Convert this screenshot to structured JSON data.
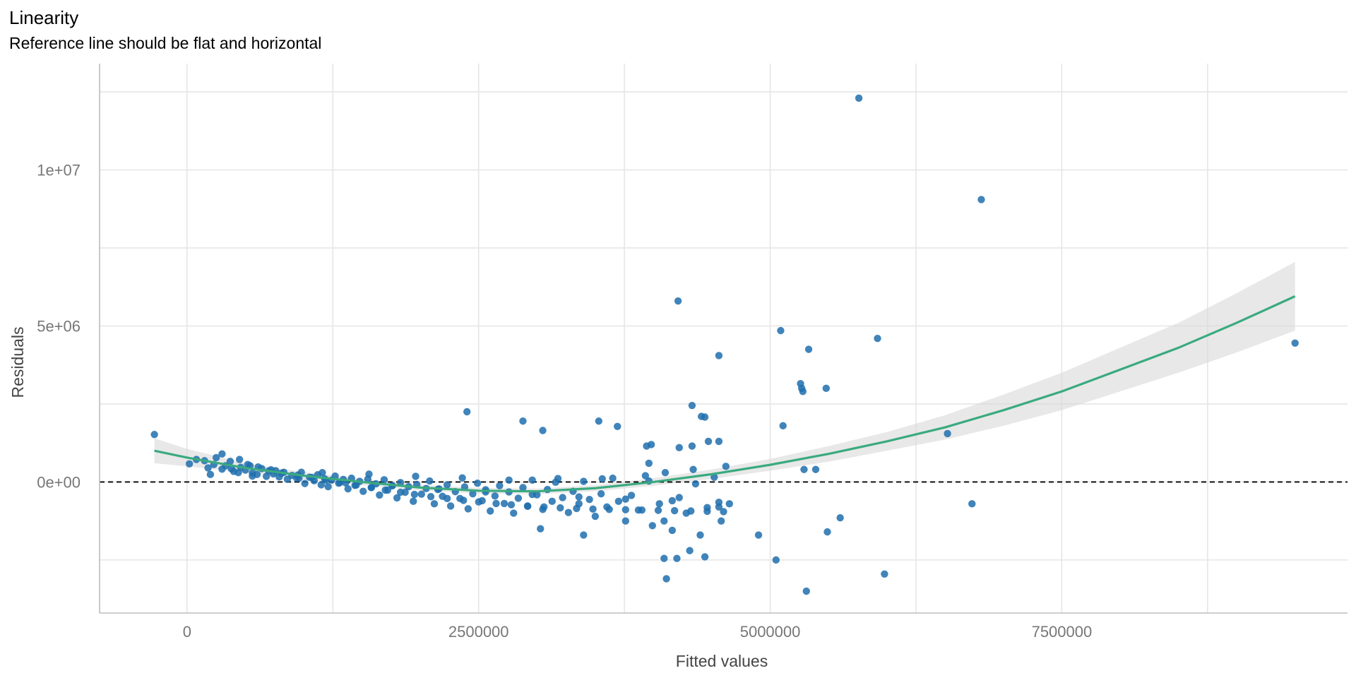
{
  "title": "Linearity",
  "subtitle": "Reference line should be flat and horizontal",
  "chart_data": {
    "type": "scatter",
    "title": "Linearity",
    "subtitle": "Reference line should be flat and horizontal",
    "xlabel": "Fitted values",
    "ylabel": "Residuals",
    "xlim": [
      -750000,
      9950000
    ],
    "ylim": [
      -4200000,
      13000000
    ],
    "x_ticks": [
      {
        "value": 0,
        "label": "0"
      },
      {
        "value": 2500000,
        "label": "2500000"
      },
      {
        "value": 5000000,
        "label": "5000000"
      },
      {
        "value": 7500000,
        "label": "7500000"
      }
    ],
    "x_minor_ticks": [
      1250000,
      3750000,
      6250000,
      8750000
    ],
    "y_ticks": [
      {
        "value": 0,
        "label": "0e+00"
      },
      {
        "value": 5000000,
        "label": "5e+06"
      },
      {
        "value": 10000000,
        "label": "1e+07"
      }
    ],
    "y_minor_ticks": [
      -2500000,
      2500000,
      7500000,
      12500000
    ],
    "grid": true,
    "reference_line": {
      "y": 0,
      "style": "dashed",
      "color": "#000000"
    },
    "colors": {
      "points": "#1f6fae",
      "smooth": "#3aaa7f",
      "band": "#d9d9d9"
    },
    "series": [
      {
        "type": "points",
        "x": [
          -280000,
          20000,
          80000,
          150000,
          180000,
          230000,
          250000,
          300000,
          330000,
          370000,
          400000,
          440000,
          460000,
          500000,
          540000,
          560000,
          600000,
          640000,
          680000,
          700000,
          740000,
          790000,
          810000,
          860000,
          900000,
          940000,
          980000,
          1010000,
          1050000,
          1090000,
          1120000,
          1150000,
          1180000,
          1210000,
          1240000,
          1270000,
          1300000,
          1340000,
          1380000,
          1410000,
          1440000,
          1480000,
          1510000,
          1550000,
          1580000,
          1620000,
          1650000,
          1690000,
          1720000,
          1760000,
          1800000,
          1830000,
          1870000,
          1900000,
          1940000,
          1970000,
          2010000,
          2050000,
          2080000,
          2120000,
          2150000,
          2190000,
          2230000,
          2260000,
          2300000,
          2340000,
          2380000,
          2410000,
          2450000,
          2490000,
          2530000,
          2560000,
          2600000,
          2640000,
          2680000,
          2720000,
          2760000,
          2800000,
          2840000,
          2880000,
          2920000,
          2960000,
          3000000,
          3050000,
          3090000,
          3130000,
          3180000,
          3220000,
          3270000,
          3310000,
          3360000,
          3400000,
          3450000,
          3500000,
          3550000,
          3600000,
          3650000,
          3700000,
          3760000,
          3810000,
          3870000,
          3930000,
          3990000,
          4050000,
          4100000,
          4160000,
          4220000,
          4280000,
          4340000,
          4400000,
          4460000,
          4520000,
          4580000,
          4650000,
          300000,
          450000,
          520000,
          610000,
          720000,
          830000,
          950000,
          1070000,
          1190000,
          1310000,
          1450000,
          1580000,
          1700000,
          1830000,
          1950000,
          2090000,
          2230000,
          2370000,
          2500000,
          2650000,
          2780000,
          2920000,
          3060000,
          3200000,
          3340000,
          3480000,
          3620000,
          3760000,
          3900000,
          4040000,
          4180000,
          4320000,
          4460000,
          4600000,
          200000,
          380000,
          560000,
          760000,
          960000,
          1160000,
          1360000,
          1560000,
          1760000,
          1960000,
          2160000,
          2360000,
          2560000,
          2760000,
          2960000,
          3160000,
          3360000,
          3560000,
          3760000,
          3960000,
          4160000,
          4360000,
          4560000,
          2400000,
          2880000,
          3050000,
          3530000,
          3690000,
          3980000,
          4330000,
          4410000,
          4440000,
          4560000,
          4200000,
          4090000,
          4310000,
          4440000,
          4110000,
          4620000,
          4210000,
          3940000,
          3960000,
          4470000,
          4090000,
          4330000,
          4560000,
          3400000,
          3030000,
          4220000,
          4560000,
          4900000,
          5050000,
          5090000,
          5110000,
          5260000,
          5270000,
          5280000,
          5290000,
          5310000,
          5330000,
          5390000,
          5490000,
          5480000,
          5600000,
          5760000,
          5920000,
          5980000,
          6520000,
          6730000,
          6810000,
          9500000
        ],
        "y": [
          1520000,
          580000,
          720000,
          680000,
          450000,
          560000,
          780000,
          410000,
          520000,
          660000,
          340000,
          300000,
          470000,
          380000,
          520000,
          290000,
          240000,
          430000,
          180000,
          350000,
          260000,
          160000,
          280000,
          90000,
          210000,
          120000,
          310000,
          -50000,
          150000,
          40000,
          230000,
          -90000,
          100000,
          -150000,
          60000,
          190000,
          -40000,
          80000,
          -220000,
          120000,
          -110000,
          20000,
          -300000,
          90000,
          -180000,
          -60000,
          -420000,
          70000,
          -260000,
          -120000,
          -510000,
          -20000,
          -330000,
          -150000,
          -620000,
          -80000,
          -390000,
          -210000,
          30000,
          -700000,
          -240000,
          -460000,
          -90000,
          -770000,
          -310000,
          -530000,
          -160000,
          -860000,
          -380000,
          -40000,
          -600000,
          -250000,
          -930000,
          -450000,
          -120000,
          -690000,
          -320000,
          -1000000,
          -520000,
          -180000,
          -780000,
          60000,
          -410000,
          -880000,
          -240000,
          -620000,
          110000,
          -500000,
          -980000,
          -300000,
          -700000,
          20000,
          -560000,
          -1100000,
          -380000,
          -800000,
          120000,
          -620000,
          -1250000,
          -430000,
          -900000,
          200000,
          -1400000,
          -700000,
          300000,
          -1550000,
          -500000,
          -1000000,
          400000,
          -1700000,
          -820000,
          150000,
          -1250000,
          -700000,
          900000,
          720000,
          560000,
          480000,
          390000,
          310000,
          220000,
          140000,
          60000,
          -20000,
          -100000,
          -180000,
          -260000,
          -330000,
          -400000,
          -470000,
          -530000,
          -590000,
          -640000,
          -690000,
          -730000,
          -770000,
          -800000,
          -830000,
          -850000,
          -870000,
          -880000,
          -890000,
          -900000,
          -910000,
          -920000,
          -930000,
          -940000,
          -950000,
          240000,
          420000,
          190000,
          360000,
          120000,
          300000,
          -30000,
          250000,
          -120000,
          180000,
          -220000,
          130000,
          -320000,
          60000,
          -400000,
          -10000,
          -480000,
          100000,
          -550000,
          30000,
          -600000,
          -60000,
          -650000,
          2250000,
          1950000,
          1650000,
          1950000,
          1780000,
          1200000,
          2450000,
          2100000,
          2080000,
          1300000,
          -2450000,
          -2450000,
          -2200000,
          -2400000,
          -3100000,
          500000,
          5800000,
          1150000,
          600000,
          1300000,
          -1250000,
          1150000,
          4050000,
          -1700000,
          -1500000,
          1100000,
          -800000,
          -1700000,
          -2500000,
          4850000,
          1800000,
          3150000,
          3000000,
          2900000,
          400000,
          -3500000,
          4250000,
          400000,
          -1600000,
          3000000,
          -1150000,
          12300000,
          4600000,
          -2950000,
          1550000,
          -700000,
          9050000,
          4450000
        ]
      },
      {
        "type": "smooth",
        "name": "",
        "x": [
          -280000,
          0,
          500000,
          1000000,
          1500000,
          2000000,
          2500000,
          3000000,
          3500000,
          4000000,
          4500000,
          5000000,
          5500000,
          6000000,
          6500000,
          7000000,
          7500000,
          8000000,
          8500000,
          9000000,
          9500000
        ],
        "y": [
          1000000,
          780000,
          450000,
          200000,
          0,
          -180000,
          -280000,
          -300000,
          -200000,
          0,
          250000,
          550000,
          900000,
          1300000,
          1750000,
          2300000,
          2900000,
          3600000,
          4300000,
          5100000,
          5950000
        ],
        "band_lower": [
          600000,
          500000,
          300000,
          80000,
          -100000,
          -270000,
          -370000,
          -390000,
          -300000,
          -120000,
          100000,
          360000,
          650000,
          1000000,
          1360000,
          1800000,
          2300000,
          2900000,
          3500000,
          4150000,
          4850000
        ],
        "band_upper": [
          1400000,
          1060000,
          600000,
          320000,
          100000,
          -90000,
          -190000,
          -210000,
          -100000,
          120000,
          400000,
          740000,
          1150000,
          1600000,
          2140000,
          2800000,
          3500000,
          4300000,
          5100000,
          6050000,
          7050000
        ]
      }
    ]
  }
}
